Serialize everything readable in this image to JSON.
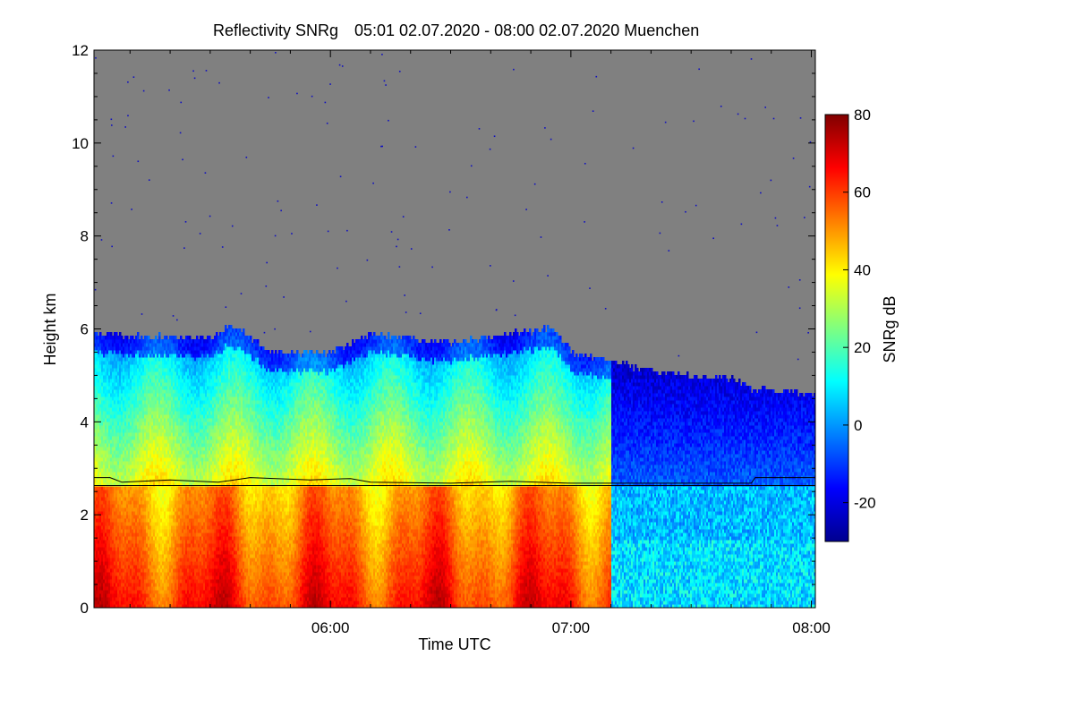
{
  "chart_data": {
    "type": "heatmap",
    "title": "Reflectivity SNRg",
    "subtitle": "05:01 02.07.2020 - 08:00 02.07.2020 Muenchen",
    "xlabel": "Time UTC",
    "ylabel": "Height km",
    "x_range": [
      "05:01",
      "08:01"
    ],
    "x_ticks": [
      {
        "label": "06:00",
        "value": "06:00"
      },
      {
        "label": "07:00",
        "value": "07:00"
      },
      {
        "label": "08:00",
        "value": "08:00"
      }
    ],
    "ylim": [
      0,
      12
    ],
    "y_ticks": [
      0,
      2,
      4,
      6,
      8,
      10,
      12
    ],
    "background_color": "#808080",
    "colorbar": {
      "label": "SNRg dB",
      "range": [
        -30,
        80
      ],
      "ticks": [
        -20,
        0,
        20,
        40,
        60,
        80
      ],
      "colormap": "jet"
    },
    "echo_top_km": [
      {
        "time": "05:01",
        "top": 5.9
      },
      {
        "time": "05:30",
        "top": 5.8
      },
      {
        "time": "05:35",
        "top": 6.1
      },
      {
        "time": "05:45",
        "top": 5.5
      },
      {
        "time": "06:00",
        "top": 5.5
      },
      {
        "time": "06:10",
        "top": 5.9
      },
      {
        "time": "06:30",
        "top": 5.7
      },
      {
        "time": "06:45",
        "top": 5.9
      },
      {
        "time": "06:55",
        "top": 6.0
      },
      {
        "time": "07:00",
        "top": 5.5
      },
      {
        "time": "07:10",
        "top": 5.3
      },
      {
        "time": "07:20",
        "top": 5.1
      },
      {
        "time": "07:30",
        "top": 5.0
      },
      {
        "time": "07:40",
        "top": 4.9
      },
      {
        "time": "07:45",
        "top": 4.7
      },
      {
        "time": "08:00",
        "top": 4.6
      }
    ],
    "overlay_lines": [
      {
        "name": "upper line",
        "points": [
          {
            "time": "05:01",
            "height": 2.8
          },
          {
            "time": "05:05",
            "height": 2.8
          },
          {
            "time": "05:08",
            "height": 2.7
          },
          {
            "time": "05:20",
            "height": 2.75
          },
          {
            "time": "05:32",
            "height": 2.7
          },
          {
            "time": "05:40",
            "height": 2.8
          },
          {
            "time": "05:55",
            "height": 2.75
          },
          {
            "time": "06:05",
            "height": 2.78
          },
          {
            "time": "06:10",
            "height": 2.7
          },
          {
            "time": "06:30",
            "height": 2.68
          },
          {
            "time": "06:45",
            "height": 2.72
          },
          {
            "time": "07:00",
            "height": 2.68
          },
          {
            "time": "07:45",
            "height": 2.68
          },
          {
            "time": "07:46",
            "height": 2.8
          },
          {
            "time": "08:01",
            "height": 2.8
          }
        ]
      },
      {
        "name": "lower line",
        "points": [
          {
            "time": "05:01",
            "height": 2.63
          },
          {
            "time": "08:01",
            "height": 2.63
          }
        ]
      }
    ]
  }
}
